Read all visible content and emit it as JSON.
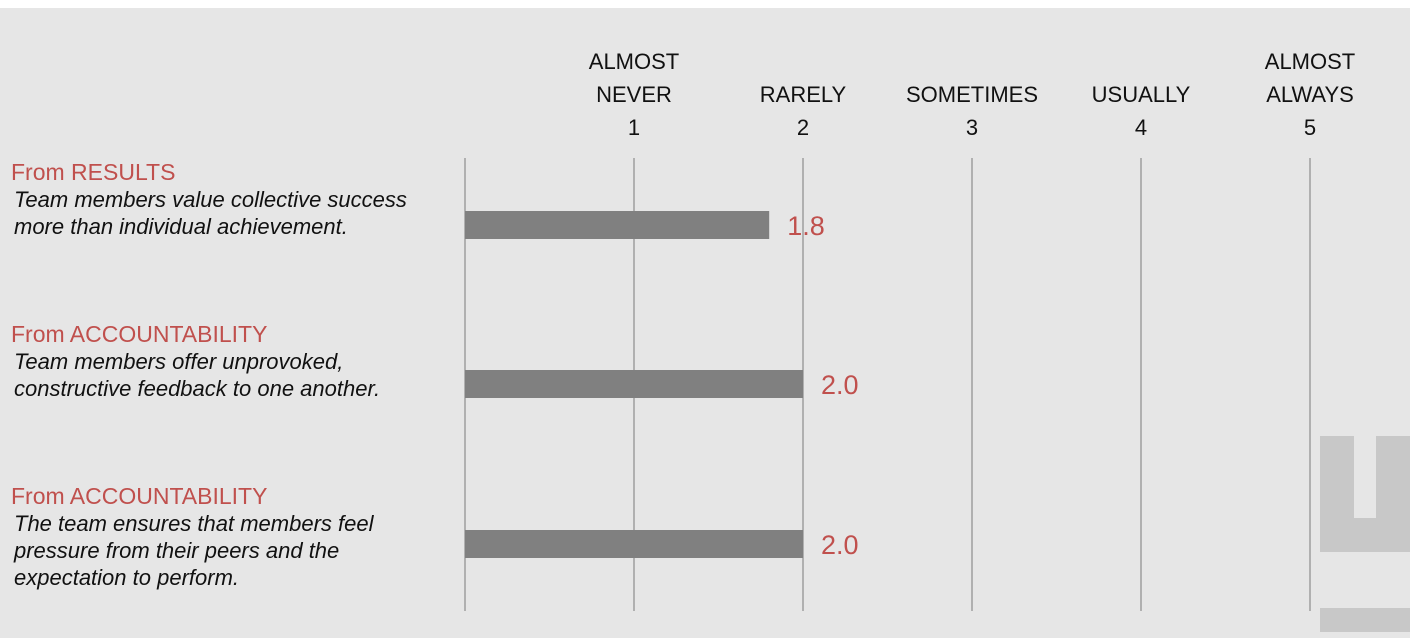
{
  "colors": {
    "background": "#e6e6e6",
    "bar": "#808080",
    "accent": "#c0504d",
    "gridline": "#b0b0b0",
    "text": "#111111"
  },
  "chart_data": {
    "type": "bar",
    "orientation": "horizontal",
    "xlim": [
      0,
      5
    ],
    "grid": true,
    "legend": "none",
    "scale_ticks": [
      {
        "value": 1,
        "label_lines": [
          "ALMOST",
          "NEVER",
          "1"
        ]
      },
      {
        "value": 2,
        "label_lines": [
          "RARELY",
          "2"
        ]
      },
      {
        "value": 3,
        "label_lines": [
          "SOMETIMES",
          "3"
        ]
      },
      {
        "value": 4,
        "label_lines": [
          "USUALLY",
          "4"
        ]
      },
      {
        "value": 5,
        "label_lines": [
          "ALMOST",
          "ALWAYS",
          "5"
        ]
      }
    ],
    "rows": [
      {
        "category": "From RESULTS",
        "statement": "Team members value collective success more than individual achievement.",
        "value": 1.8,
        "value_label": "1.8"
      },
      {
        "category": "From ACCOUNTABILITY",
        "statement": "Team members offer unprovoked, constructive feedback to one another.",
        "value": 2.0,
        "value_label": "2.0"
      },
      {
        "category": "From ACCOUNTABILITY",
        "statement": "The team ensures that members feel pressure from their peers and the expectation to perform.",
        "value": 2.0,
        "value_label": "2.0"
      }
    ]
  }
}
